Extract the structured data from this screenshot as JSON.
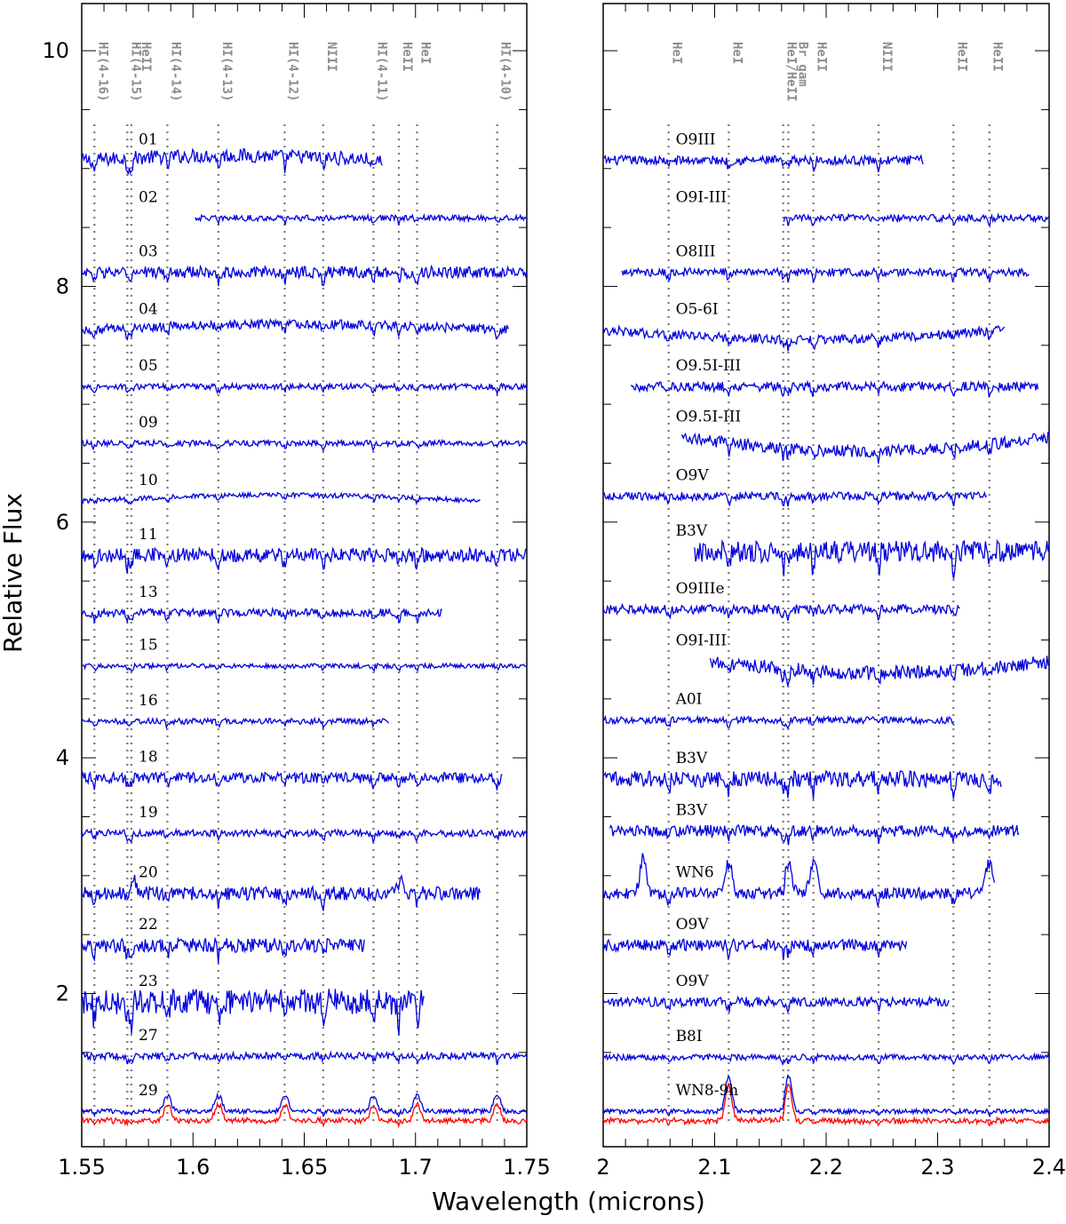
{
  "chart_data": {
    "type": "line",
    "xlabel": "Wavelength (microns)",
    "ylabel": "Relative Flux",
    "ylim": [
      0.7,
      10.4
    ],
    "y_ticks": [
      "2",
      "4",
      "6",
      "8",
      "10"
    ],
    "panels": [
      {
        "xlim": [
          1.55,
          1.75
        ],
        "x_ticks": [
          "1.55",
          "1.6",
          "1.65",
          "1.7",
          "1.75"
        ],
        "line_marks": [
          {
            "label": "HI(4-16)",
            "x": 1.5557
          },
          {
            "label": "HI(4-15)",
            "x": 1.5705
          },
          {
            "label": "HeII",
            "x": 1.5723
          },
          {
            "label": "HI(4-14)",
            "x": 1.5885
          },
          {
            "label": "HI(4-13)",
            "x": 1.6114
          },
          {
            "label": "HI(4-12)",
            "x": 1.6412
          },
          {
            "label": "NIII",
            "x": 1.6585
          },
          {
            "label": "HI(4-11)",
            "x": 1.6811
          },
          {
            "label": "HeII",
            "x": 1.6925
          },
          {
            "label": "HeI",
            "x": 1.7007
          },
          {
            "label": "HI(4-10)",
            "x": 1.7367
          }
        ],
        "spectra": [
          {
            "name": "01",
            "offset": 9.07,
            "start": 1.55,
            "end": 1.685,
            "noise": 0.06,
            "trend": 0.04
          },
          {
            "name": "02",
            "offset": 8.58,
            "start": 1.601,
            "end": 1.75,
            "noise": 0.025
          },
          {
            "name": "03",
            "offset": 8.12,
            "start": 1.55,
            "end": 1.75,
            "noise": 0.05
          },
          {
            "name": "04",
            "offset": 7.63,
            "start": 1.55,
            "end": 1.742,
            "noise": 0.04,
            "trend": 0.05
          },
          {
            "name": "05",
            "offset": 7.15,
            "start": 1.55,
            "end": 1.75,
            "noise": 0.025
          },
          {
            "name": "09",
            "offset": 6.67,
            "start": 1.55,
            "end": 1.75,
            "noise": 0.025
          },
          {
            "name": "10",
            "offset": 6.18,
            "start": 1.55,
            "end": 1.729,
            "noise": 0.02,
            "trend": 0.05
          },
          {
            "name": "11",
            "offset": 5.72,
            "start": 1.55,
            "end": 1.75,
            "noise": 0.06
          },
          {
            "name": "13",
            "offset": 5.23,
            "start": 1.55,
            "end": 1.712,
            "noise": 0.035
          },
          {
            "name": "15",
            "offset": 4.78,
            "start": 1.55,
            "end": 1.75,
            "noise": 0.02
          },
          {
            "name": "16",
            "offset": 4.31,
            "start": 1.55,
            "end": 1.688,
            "noise": 0.025
          },
          {
            "name": "18",
            "offset": 3.83,
            "start": 1.55,
            "end": 1.739,
            "noise": 0.045
          },
          {
            "name": "19",
            "offset": 3.36,
            "start": 1.55,
            "end": 1.75,
            "noise": 0.03
          },
          {
            "name": "20",
            "offset": 2.85,
            "start": 1.55,
            "end": 1.729,
            "noise": 0.06,
            "emission": [
              1.5725,
              1.6925
            ]
          },
          {
            "name": "22",
            "offset": 2.41,
            "start": 1.55,
            "end": 1.677,
            "noise": 0.06
          },
          {
            "name": "23",
            "offset": 1.93,
            "start": 1.55,
            "end": 1.704,
            "noise": 0.11
          },
          {
            "name": "27",
            "offset": 1.47,
            "start": 1.55,
            "end": 1.75,
            "noise": 0.03
          },
          {
            "name": "29",
            "offset": 1.0,
            "start": 1.55,
            "end": 1.75,
            "noise": 0.02,
            "emission": [
              1.5885,
              1.6114,
              1.6412,
              1.6811,
              1.7007,
              1.7367
            ]
          }
        ]
      },
      {
        "xlim": [
          2.0,
          2.4
        ],
        "x_ticks": [
          "2",
          "2.1",
          "2.2",
          "2.3",
          "2.4"
        ],
        "line_marks": [
          {
            "label": "HeI",
            "x": 2.0587
          },
          {
            "label": "HeI",
            "x": 2.1126
          },
          {
            "label": "HeI/HeII",
            "x": 2.1615
          },
          {
            "label": "Br gam",
            "x": 2.1661
          },
          {
            "label": "HeII",
            "x": 2.1885
          },
          {
            "label": "NIII",
            "x": 2.247
          },
          {
            "label": "HeII",
            "x": 2.3142
          },
          {
            "label": "HeII",
            "x": 2.3464
          }
        ],
        "spectra": [
          {
            "name": "O9III",
            "offset": 9.07,
            "start": 2.0,
            "end": 2.287,
            "noise": 0.04
          },
          {
            "name": "O9I-III",
            "offset": 8.58,
            "start": 2.162,
            "end": 2.4,
            "noise": 0.03
          },
          {
            "name": "O8III",
            "offset": 8.12,
            "start": 2.017,
            "end": 2.382,
            "noise": 0.035
          },
          {
            "name": "O5-6I",
            "offset": 7.63,
            "start": 2.0,
            "end": 2.36,
            "noise": 0.04,
            "trend": -0.08
          },
          {
            "name": "O9.5I-III",
            "offset": 7.15,
            "start": 2.025,
            "end": 2.39,
            "noise": 0.04
          },
          {
            "name": "O9.5I-III",
            "offset": 6.72,
            "start": 2.07,
            "end": 2.4,
            "noise": 0.05,
            "trend": -0.12
          },
          {
            "name": "O9V",
            "offset": 6.22,
            "start": 2.0,
            "end": 2.344,
            "noise": 0.035
          },
          {
            "name": "B3V",
            "offset": 5.75,
            "start": 2.082,
            "end": 2.4,
            "noise": 0.09
          },
          {
            "name": "O9IIIe",
            "offset": 5.26,
            "start": 2.0,
            "end": 2.32,
            "noise": 0.04
          },
          {
            "name": "O9I-III",
            "offset": 4.82,
            "start": 2.096,
            "end": 2.4,
            "noise": 0.06,
            "trend": -0.1
          },
          {
            "name": "A0I",
            "offset": 4.32,
            "start": 2.0,
            "end": 2.315,
            "noise": 0.03
          },
          {
            "name": "B3V",
            "offset": 3.82,
            "start": 2.0,
            "end": 2.357,
            "noise": 0.07
          },
          {
            "name": "B3V",
            "offset": 3.38,
            "start": 2.006,
            "end": 2.373,
            "noise": 0.05
          },
          {
            "name": "WN6",
            "offset": 2.85,
            "start": 2.0,
            "end": 2.351,
            "noise": 0.05,
            "emission": [
              2.036,
              2.1126,
              2.1661,
              2.1885,
              2.3464
            ]
          },
          {
            "name": "O9V",
            "offset": 2.41,
            "start": 2.0,
            "end": 2.272,
            "noise": 0.05
          },
          {
            "name": "O9V",
            "offset": 1.93,
            "start": 2.0,
            "end": 2.31,
            "noise": 0.04
          },
          {
            "name": "B8I",
            "offset": 1.46,
            "start": 2.0,
            "end": 2.4,
            "noise": 0.025
          },
          {
            "name": "WN8-9h",
            "offset": 1.0,
            "start": 2.0,
            "end": 2.4,
            "noise": 0.02,
            "emission": [
              2.1126,
              2.1661
            ]
          }
        ]
      }
    ],
    "series_colors": {
      "spectra": "#0000dd",
      "reference": "#ff0000"
    }
  }
}
